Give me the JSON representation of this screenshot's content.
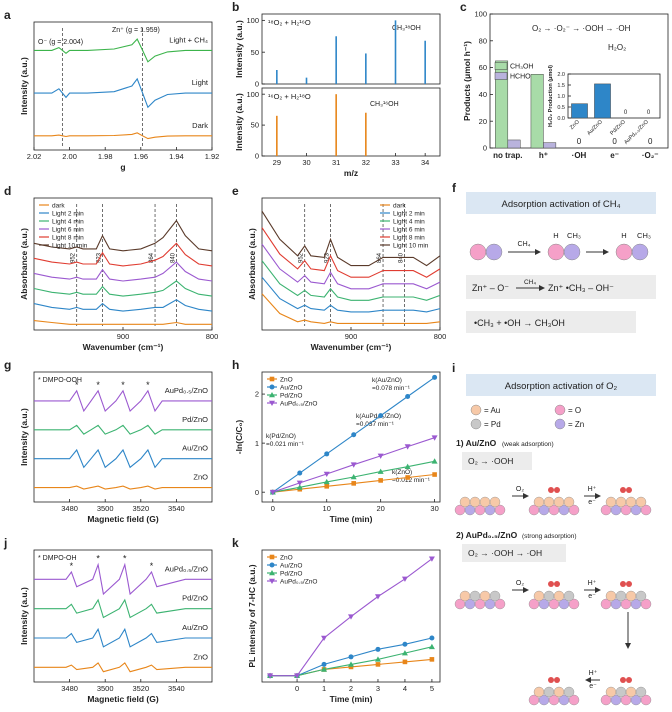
{
  "chart_data": [
    {
      "panel": "a",
      "type": "line",
      "xlabel": "g",
      "ylabel": "Intensity (a.u.)",
      "xlim": [
        2.02,
        1.92
      ],
      "ylim": [
        0,
        90
      ],
      "xticks": [
        2.02,
        {
          "value": 2.0,
          "label": "2.00"
        },
        1.98,
        1.96,
        1.94,
        1.92
      ],
      "yticks": [],
      "legend": "inline",
      "vlines": [
        2.004,
        1.959
      ],
      "annotations": [
        "O⁻ (g = 2.004)",
        "Zn⁺ (g = 1.959)"
      ],
      "x": [
        2.02,
        2.01,
        2.006,
        2.004,
        2.002,
        2.0,
        1.99,
        1.975,
        1.965,
        1.962,
        1.959,
        1.956,
        1.952,
        1.945,
        1.935,
        1.92
      ],
      "series": [
        {
          "name": "Light + CH₄",
          "color": "#3cb44b",
          "values": [
            70,
            70,
            72,
            70,
            68,
            70,
            70,
            71,
            74,
            78,
            70,
            62,
            66,
            69,
            70,
            70
          ]
        },
        {
          "name": "Light",
          "color": "#2e86c8",
          "values": [
            40,
            40,
            43,
            40,
            37,
            40,
            40,
            41,
            45,
            50,
            40,
            30,
            35,
            39,
            40,
            40
          ]
        },
        {
          "name": "Dark",
          "color": "#e8861a",
          "values": [
            10,
            10,
            10.5,
            10,
            9.5,
            10,
            10,
            10.2,
            11,
            12,
            10,
            8,
            9,
            9.8,
            10,
            10
          ]
        }
      ]
    },
    {
      "panel": "b",
      "type": "bar",
      "title": "¹⁸O₂ + H₂¹⁶O",
      "ylabel": "Intensity (a.u.)",
      "xlim": [
        28.5,
        34.5
      ],
      "ylim": [
        0,
        110
      ],
      "yticks": [
        0,
        50,
        100
      ],
      "color": "#2e86c8",
      "annotations": [
        "CH₃¹⁸OH"
      ],
      "x": [
        29,
        30,
        31,
        32,
        33,
        34
      ],
      "values": [
        22,
        10,
        75,
        48,
        100,
        68
      ]
    },
    {
      "type": "bar",
      "title": "¹⁶O₂ + H₂¹⁸O",
      "ylabel": "Intensity (a.u.)",
      "xlabel": "m/z",
      "xlim": [
        28.5,
        34.5
      ],
      "ylim": [
        0,
        110
      ],
      "xticks": [
        29,
        30,
        31,
        32,
        33,
        34
      ],
      "yticks": [
        0,
        50,
        100
      ],
      "color": "#e8861a",
      "annotations": [
        "CH₃¹⁶OH"
      ],
      "x": [
        29,
        31,
        32
      ],
      "values": [
        65,
        100,
        70
      ]
    },
    {
      "panel": "c",
      "type": "bar",
      "ylabel": "Products (μmol h⁻¹)",
      "ylim": [
        0,
        100
      ],
      "yticks": [
        0,
        20,
        40,
        60,
        80,
        100
      ],
      "legend": "upper left",
      "annotations": [
        "O₂ → ·O₂⁻ → ·OOH → ·OH",
        "H₂O₂"
      ],
      "categories": [
        "no trap.",
        "h⁺",
        "·OH",
        "e⁻",
        "·O₂⁻"
      ],
      "series": [
        {
          "name": "CH₃OH",
          "color": "#a8dba8",
          "values": [
            65,
            55,
            0,
            0,
            0
          ]
        },
        {
          "name": "HCHO",
          "color": "#b9b3dd",
          "values": [
            6,
            4,
            0,
            0,
            0
          ]
        }
      ]
    },
    {
      "type": "bar",
      "inset": true,
      "rotate_labels": true,
      "ylabel": "H₂O₂ Production (μmol)",
      "ylim": [
        0,
        2
      ],
      "yticks": [
        {
          "value": 0,
          "label": "0.0"
        },
        {
          "value": 0.5,
          "label": "0.5"
        },
        {
          "value": 1,
          "label": "1.0"
        },
        {
          "value": 1.5,
          "label": "1.5"
        },
        {
          "value": 2,
          "label": "2.0"
        }
      ],
      "categories": [
        "ZnO",
        "Au/ZnO",
        "Pd/ZnO",
        "AuPd₀.₅/ZnO"
      ],
      "values": [
        0.65,
        1.55,
        0,
        0
      ],
      "color": "#2e86c8",
      "value_label_color": "#e8861a"
    },
    {
      "panel": "d",
      "type": "line",
      "xlabel": "Wavenumber (cm⁻¹)",
      "ylabel": "Absorbance (a.u.)",
      "xlim": [
        1000,
        800
      ],
      "ylim": [
        0,
        70
      ],
      "xticks": [
        900,
        800
      ],
      "yticks": [],
      "legend": "upper left",
      "vlines": [
        952,
        923,
        864,
        840
      ],
      "vline_labels": true,
      "x": [
        1000,
        980,
        960,
        952,
        945,
        930,
        923,
        915,
        900,
        880,
        864,
        855,
        840,
        830,
        815,
        800
      ],
      "series": [
        {
          "name": "dark",
          "color": "#e8861a",
          "values": [
            5,
            4,
            3,
            3,
            3,
            3,
            3,
            3,
            3,
            3,
            3,
            3,
            4,
            3,
            3,
            3
          ]
        },
        {
          "name": "Light 2 min",
          "color": "#2e86c8",
          "values": [
            14,
            12,
            11,
            12,
            11,
            11,
            14,
            11,
            10,
            11,
            12,
            12,
            16,
            13,
            11,
            10
          ]
        },
        {
          "name": "Light 4 min",
          "color": "#3cb371",
          "values": [
            22,
            20,
            19,
            20,
            19,
            19,
            23,
            19,
            18,
            19,
            20,
            21,
            26,
            22,
            19,
            18
          ]
        },
        {
          "name": "Light 6 min",
          "color": "#9b59d0",
          "values": [
            30,
            28,
            27,
            28,
            27,
            27,
            32,
            27,
            26,
            27,
            28,
            30,
            36,
            31,
            27,
            26
          ]
        },
        {
          "name": "Light 8 min",
          "color": "#e03c31",
          "values": [
            38,
            36,
            35,
            36,
            35,
            35,
            41,
            35,
            34,
            35,
            37,
            39,
            46,
            40,
            35,
            34
          ]
        },
        {
          "name": "Light 10 min",
          "color": "#5a3a2a",
          "values": [
            46,
            44,
            43,
            44,
            43,
            43,
            50,
            43,
            42,
            43,
            46,
            49,
            58,
            50,
            43,
            42
          ]
        }
      ]
    },
    {
      "panel": "e",
      "type": "line",
      "xlabel": "Wavenumber (cm⁻¹)",
      "ylabel": "Absorbance (a.u.)",
      "xlim": [
        1000,
        800
      ],
      "ylim": [
        0,
        80
      ],
      "xticks": [
        900,
        800
      ],
      "yticks": [],
      "legend": "upper right",
      "vlines": [
        952,
        923,
        864,
        840
      ],
      "vline_labels": true,
      "x": [
        1000,
        980,
        960,
        952,
        945,
        930,
        923,
        915,
        900,
        880,
        864,
        855,
        840,
        830,
        815,
        800
      ],
      "series": [
        {
          "name": "dark",
          "color": "#e8861a",
          "values": [
            22,
            10,
            5,
            6,
            5,
            4,
            5,
            4,
            4,
            4,
            4,
            4,
            4,
            4,
            4,
            5
          ]
        },
        {
          "name": "Light 2 min",
          "color": "#2e86c8",
          "values": [
            32,
            19,
            13,
            15,
            13,
            12,
            15,
            12,
            11,
            11,
            12,
            12,
            12,
            12,
            11,
            13
          ]
        },
        {
          "name": "Light 4 min",
          "color": "#3cb371",
          "values": [
            42,
            28,
            21,
            24,
            21,
            20,
            25,
            20,
            18,
            18,
            20,
            20,
            20,
            20,
            18,
            21
          ]
        },
        {
          "name": "Light 6 min",
          "color": "#9b59d0",
          "values": [
            52,
            37,
            29,
            33,
            29,
            28,
            35,
            28,
            25,
            25,
            28,
            28,
            28,
            28,
            25,
            29
          ]
        },
        {
          "name": "Light 8 min",
          "color": "#e03c31",
          "values": [
            62,
            46,
            37,
            42,
            37,
            36,
            45,
            36,
            32,
            32,
            36,
            36,
            36,
            36,
            32,
            37
          ]
        },
        {
          "name": "Light 10 min",
          "color": "#5a3a2a",
          "values": [
            72,
            55,
            45,
            51,
            45,
            44,
            55,
            44,
            39,
            39,
            44,
            44,
            44,
            44,
            39,
            45
          ]
        }
      ]
    },
    {
      "panel": "g",
      "type": "line",
      "xlabel": "Magnetic field (G)",
      "ylabel": "Intensity (a.u.)",
      "xlim": [
        3460,
        3560
      ],
      "ylim": [
        0,
        90
      ],
      "xticks": [
        3480,
        3500,
        3520,
        3540
      ],
      "yticks": [],
      "legend": "inline",
      "annotations": [
        "* DMPO-OOH"
      ],
      "peak_marker": "*",
      "x": [
        3460,
        3480,
        3484,
        3488,
        3492,
        3496,
        3500,
        3506,
        3510,
        3514,
        3520,
        3524,
        3528,
        3532,
        3545,
        3560
      ],
      "series": [
        {
          "name": "AuPd₀.₅/ZnO",
          "color": "#9b59d0",
          "values": [
            70,
            70,
            77,
            63,
            70,
            77,
            63,
            70,
            77,
            63,
            70,
            77,
            63,
            70,
            70,
            70
          ]
        },
        {
          "name": "Pd/ZnO",
          "color": "#3cb371",
          "values": [
            50,
            50,
            53,
            47,
            50,
            53,
            47,
            50,
            53,
            47,
            50,
            53,
            47,
            50,
            50,
            50
          ]
        },
        {
          "name": "Au/ZnO",
          "color": "#2e86c8",
          "values": [
            30,
            30,
            36,
            24,
            30,
            36,
            24,
            30,
            36,
            24,
            30,
            36,
            24,
            30,
            30,
            30
          ]
        },
        {
          "name": "ZnO",
          "color": "#e8861a",
          "values": [
            10,
            10,
            11,
            9,
            10,
            11,
            9,
            10,
            11,
            9,
            10,
            11,
            9,
            10,
            10,
            10
          ]
        }
      ]
    },
    {
      "panel": "h",
      "type": "line",
      "xlabel": "Time (min)",
      "ylabel": "-ln(C/C₀)",
      "xlim": [
        -2,
        31
      ],
      "ylim": [
        -0.2,
        2.45
      ],
      "xticks": [
        0,
        10,
        20,
        30
      ],
      "yticks": [
        0,
        1,
        2
      ],
      "legend": "upper left",
      "annotations": [
        "k(Au/ZnO)",
        "=0.078 min⁻¹",
        "k(AuPd₀.₅/ZnO)",
        "=0.037 min⁻¹",
        "k(Pd/ZnO)",
        "=0.021 min⁻¹",
        "k(ZnO)",
        "=0.012 min⁻¹"
      ],
      "x": [
        0,
        5,
        10,
        15,
        20,
        25,
        30
      ],
      "series": [
        {
          "name": "ZnO",
          "color": "#e8861a",
          "marker": "square",
          "values": [
            0,
            0.06,
            0.12,
            0.18,
            0.24,
            0.3,
            0.36
          ]
        },
        {
          "name": "Au/ZnO",
          "color": "#2e86c8",
          "marker": "circle",
          "values": [
            0,
            0.39,
            0.78,
            1.17,
            1.56,
            1.95,
            2.34
          ]
        },
        {
          "name": "Pd/ZnO",
          "color": "#3cb371",
          "marker": "triangle-up",
          "values": [
            0,
            0.1,
            0.21,
            0.31,
            0.42,
            0.52,
            0.63
          ]
        },
        {
          "name": "AuPd₀.₅/ZnO",
          "color": "#9b59d0",
          "marker": "triangle-down",
          "values": [
            0,
            0.19,
            0.37,
            0.56,
            0.74,
            0.93,
            1.11
          ]
        }
      ]
    },
    {
      "panel": "j",
      "type": "line",
      "xlabel": "Magnetic field (G)",
      "ylabel": "Intensity (a.u.)",
      "xlim": [
        3460,
        3560
      ],
      "ylim": [
        0,
        90
      ],
      "xticks": [
        3480,
        3500,
        3520,
        3540
      ],
      "yticks": [],
      "legend": "inline",
      "annotations": [
        "* DMPO-OH"
      ],
      "peak_marker": "*",
      "x": [
        3460,
        3478,
        3481,
        3484,
        3493,
        3496,
        3499,
        3508,
        3511,
        3514,
        3523,
        3526,
        3529,
        3545,
        3560
      ],
      "series": [
        {
          "name": "AuPd₀.₅/ZnO",
          "color": "#9b59d0",
          "values": [
            70,
            70,
            75,
            65,
            70,
            80,
            60,
            70,
            80,
            60,
            70,
            75,
            65,
            70,
            70
          ]
        },
        {
          "name": "Pd/ZnO",
          "color": "#3cb371",
          "values": [
            50,
            50,
            53,
            47,
            50,
            56,
            44,
            50,
            56,
            44,
            50,
            53,
            47,
            50,
            50
          ]
        },
        {
          "name": "Au/ZnO",
          "color": "#2e86c8",
          "values": [
            30,
            30,
            33,
            27,
            30,
            36,
            24,
            30,
            36,
            24,
            30,
            33,
            27,
            30,
            30
          ]
        },
        {
          "name": "ZnO",
          "color": "#e8861a",
          "values": [
            10,
            10,
            11.5,
            8.5,
            10,
            13,
            7,
            10,
            13,
            7,
            10,
            11.5,
            8.5,
            10,
            10
          ]
        }
      ]
    },
    {
      "panel": "k",
      "type": "line",
      "xlabel": "Time (min)",
      "ylabel": "PL intensity of 7-HC (a.u.)",
      "xlim": [
        -1.3,
        5.3
      ],
      "ylim": [
        0,
        1.05
      ],
      "xticks": [
        0,
        1,
        2,
        3,
        4,
        5
      ],
      "yticks": [],
      "legend": "upper left",
      "x": [
        -1,
        0,
        1,
        2,
        3,
        4,
        5
      ],
      "series": [
        {
          "name": "ZnO",
          "color": "#e8861a",
          "marker": "square",
          "values": [
            0.05,
            0.05,
            0.1,
            0.12,
            0.14,
            0.16,
            0.18
          ]
        },
        {
          "name": "Au/ZnO",
          "color": "#2e86c8",
          "marker": "circle",
          "values": [
            0.05,
            0.05,
            0.14,
            0.2,
            0.26,
            0.3,
            0.35
          ]
        },
        {
          "name": "Pd/ZnO",
          "color": "#3cb371",
          "marker": "triangle-up",
          "values": [
            0.05,
            0.05,
            0.1,
            0.14,
            0.18,
            0.23,
            0.28
          ]
        },
        {
          "name": "AuPd₀.₅/ZnO",
          "color": "#9b59d0",
          "marker": "triangle-down",
          "values": [
            0.05,
            0.05,
            0.35,
            0.52,
            0.68,
            0.82,
            0.98
          ]
        }
      ]
    }
  ],
  "diagrams": {
    "f": {
      "panel": "f",
      "title": "Adsorption activation of CH₄",
      "reagent": "CH₄",
      "mol_labels": [
        "H",
        "CH₃",
        "H",
        "CH₃"
      ],
      "eq1": [
        "Zn⁺ – O⁻",
        "CH₄",
        "Zn⁺ •CH₃ – OH⁻"
      ],
      "eq2": "•CH₃ + •OH → CH₃OH"
    },
    "i": {
      "panel": "i",
      "title": "Adsorption activation of O₂",
      "legend": [
        "= Au",
        "= O",
        "= Pd",
        "= Zn"
      ],
      "case1": "1) Au/ZnO",
      "case1_note": "(weak adsorption)",
      "path1": "O₂ → ·OOH",
      "case2": "2) AuPd₀.₅/ZnO",
      "case2_note": "(strong adsorption)",
      "path2": "O₂ → ·OOH → ·OH",
      "arrow_labels": [
        "O₂",
        "H⁺",
        "e⁻",
        "O₂",
        "H⁺",
        "e⁻",
        "H⁺",
        "e⁻"
      ]
    }
  }
}
